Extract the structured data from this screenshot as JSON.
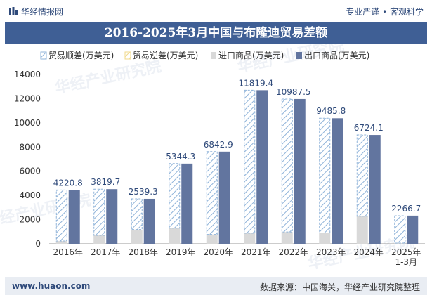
{
  "header": {
    "site_name": "华经情报网",
    "slogan": "专业严谨 • 客观科学"
  },
  "title": "2016-2025年3月中国与布隆迪贸易差额",
  "footer": {
    "url": "www.huaon.com",
    "source": "数据来源：中国海关，华经产业研究院整理"
  },
  "watermark": "华经产业研究院",
  "chart_data": {
    "type": "bar",
    "categories": [
      "2016年",
      "2017年",
      "2018年",
      "2019年",
      "2020年",
      "2021年",
      "2022年",
      "2023年",
      "2024年",
      "2025年\n1-3月"
    ],
    "series": [
      {
        "name": "贸易顺差(万美元)",
        "values": [
          4220.8,
          3819.7,
          2539.3,
          5344.3,
          6842.9,
          11819.4,
          10987.5,
          9485.8,
          6724.1,
          2266.7
        ],
        "color": "#8fb3d9",
        "style": "hatched",
        "labels": [
          "4220.8",
          "3819.7",
          "2539.3",
          "5344.3",
          "6842.9",
          "11819.4",
          "10987.5",
          "9485.8",
          "6724.1",
          "2266.7"
        ]
      },
      {
        "name": "贸易逆差(万美元)",
        "values": [
          0,
          0,
          0,
          0,
          0,
          0,
          0,
          0,
          0,
          0
        ],
        "color": "#f0d98a",
        "style": "hatched"
      },
      {
        "name": "进口商品(万美元)",
        "values": [
          230,
          700,
          1180,
          1290,
          780,
          880,
          980,
          900,
          2280,
          60
        ],
        "color": "#d9d9d9",
        "style": "solid"
      },
      {
        "name": "出口商品(万美元)",
        "values": [
          4450,
          4520,
          3720,
          6630,
          7620,
          12700,
          11970,
          10380,
          9000,
          2330
        ],
        "color": "#62759f",
        "style": "solid"
      }
    ],
    "y_axis": {
      "min": 0,
      "max": 14000,
      "ticks": [
        0,
        2000,
        4000,
        6000,
        8000,
        10000,
        12000,
        14000
      ]
    },
    "legend_position": "top",
    "grid": false
  }
}
